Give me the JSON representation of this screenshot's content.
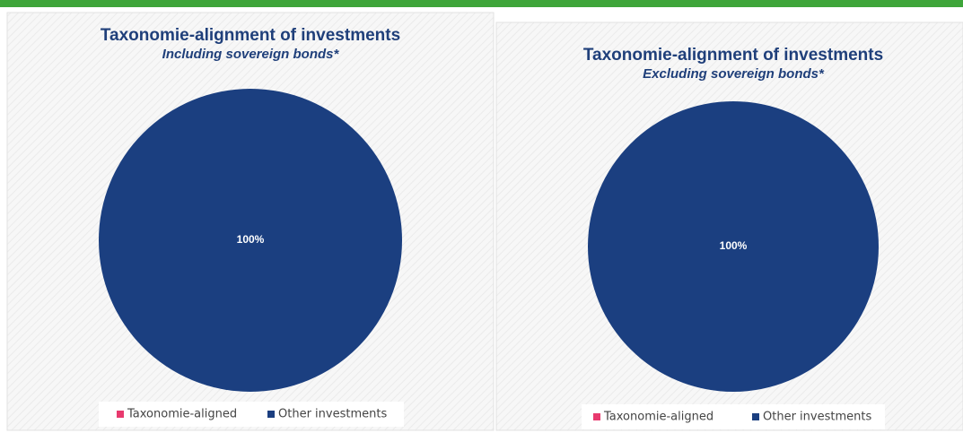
{
  "chart_data": [
    {
      "type": "pie",
      "title": "Taxonomie-alignment of investments",
      "subtitle": "Including sovereign bonds*",
      "categories": [
        "Taxonomie-aligned",
        "Other investments"
      ],
      "values": [
        0,
        100
      ],
      "value_labels": [
        null,
        "100%"
      ],
      "colors": [
        "#e83a6e",
        "#1b3f80"
      ]
    },
    {
      "type": "pie",
      "title": "Taxonomie-alignment of investments",
      "subtitle": "Excluding sovereign bonds*",
      "categories": [
        "Taxonomie-aligned",
        "Other investments"
      ],
      "values": [
        0,
        100
      ],
      "value_labels": [
        null,
        "100%"
      ],
      "colors": [
        "#e83a6e",
        "#1b3f80"
      ]
    }
  ]
}
